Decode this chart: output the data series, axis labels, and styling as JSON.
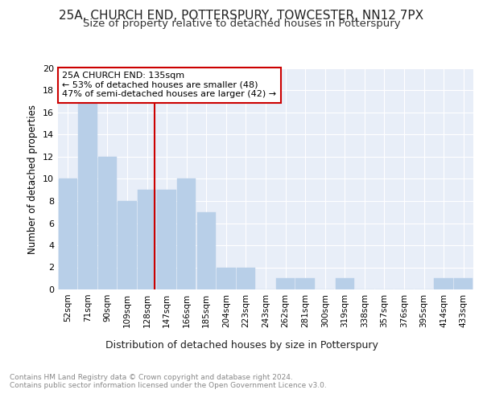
{
  "title_line1": "25A, CHURCH END, POTTERSPURY, TOWCESTER, NN12 7PX",
  "title_line2": "Size of property relative to detached houses in Potterspury",
  "xlabel": "Distribution of detached houses by size in Potterspury",
  "ylabel": "Number of detached properties",
  "categories": [
    "52sqm",
    "71sqm",
    "90sqm",
    "109sqm",
    "128sqm",
    "147sqm",
    "166sqm",
    "185sqm",
    "204sqm",
    "223sqm",
    "243sqm",
    "262sqm",
    "281sqm",
    "300sqm",
    "319sqm",
    "338sqm",
    "357sqm",
    "376sqm",
    "395sqm",
    "414sqm",
    "433sqm"
  ],
  "values": [
    10,
    17,
    12,
    8,
    9,
    9,
    10,
    7,
    2,
    2,
    0,
    1,
    1,
    0,
    1,
    0,
    0,
    0,
    0,
    1,
    1
  ],
  "bar_color": "#b8cfe8",
  "bar_edge_color": "#b8cfe8",
  "ylim": [
    0,
    20
  ],
  "yticks": [
    0,
    2,
    4,
    6,
    8,
    10,
    12,
    14,
    16,
    18,
    20
  ],
  "vline_x_index": 4.37,
  "vline_color": "#cc0000",
  "annotation_text": "25A CHURCH END: 135sqm\n← 53% of detached houses are smaller (48)\n47% of semi-detached houses are larger (42) →",
  "annotation_box_color": "#ffffff",
  "annotation_box_edge": "#cc0000",
  "footer_line1": "Contains HM Land Registry data © Crown copyright and database right 2024.",
  "footer_line2": "Contains public sector information licensed under the Open Government Licence v3.0.",
  "background_color": "#ffffff",
  "plot_bg_color": "#e8eef8",
  "grid_color": "#ffffff",
  "title1_fontsize": 11,
  "title2_fontsize": 9.5
}
